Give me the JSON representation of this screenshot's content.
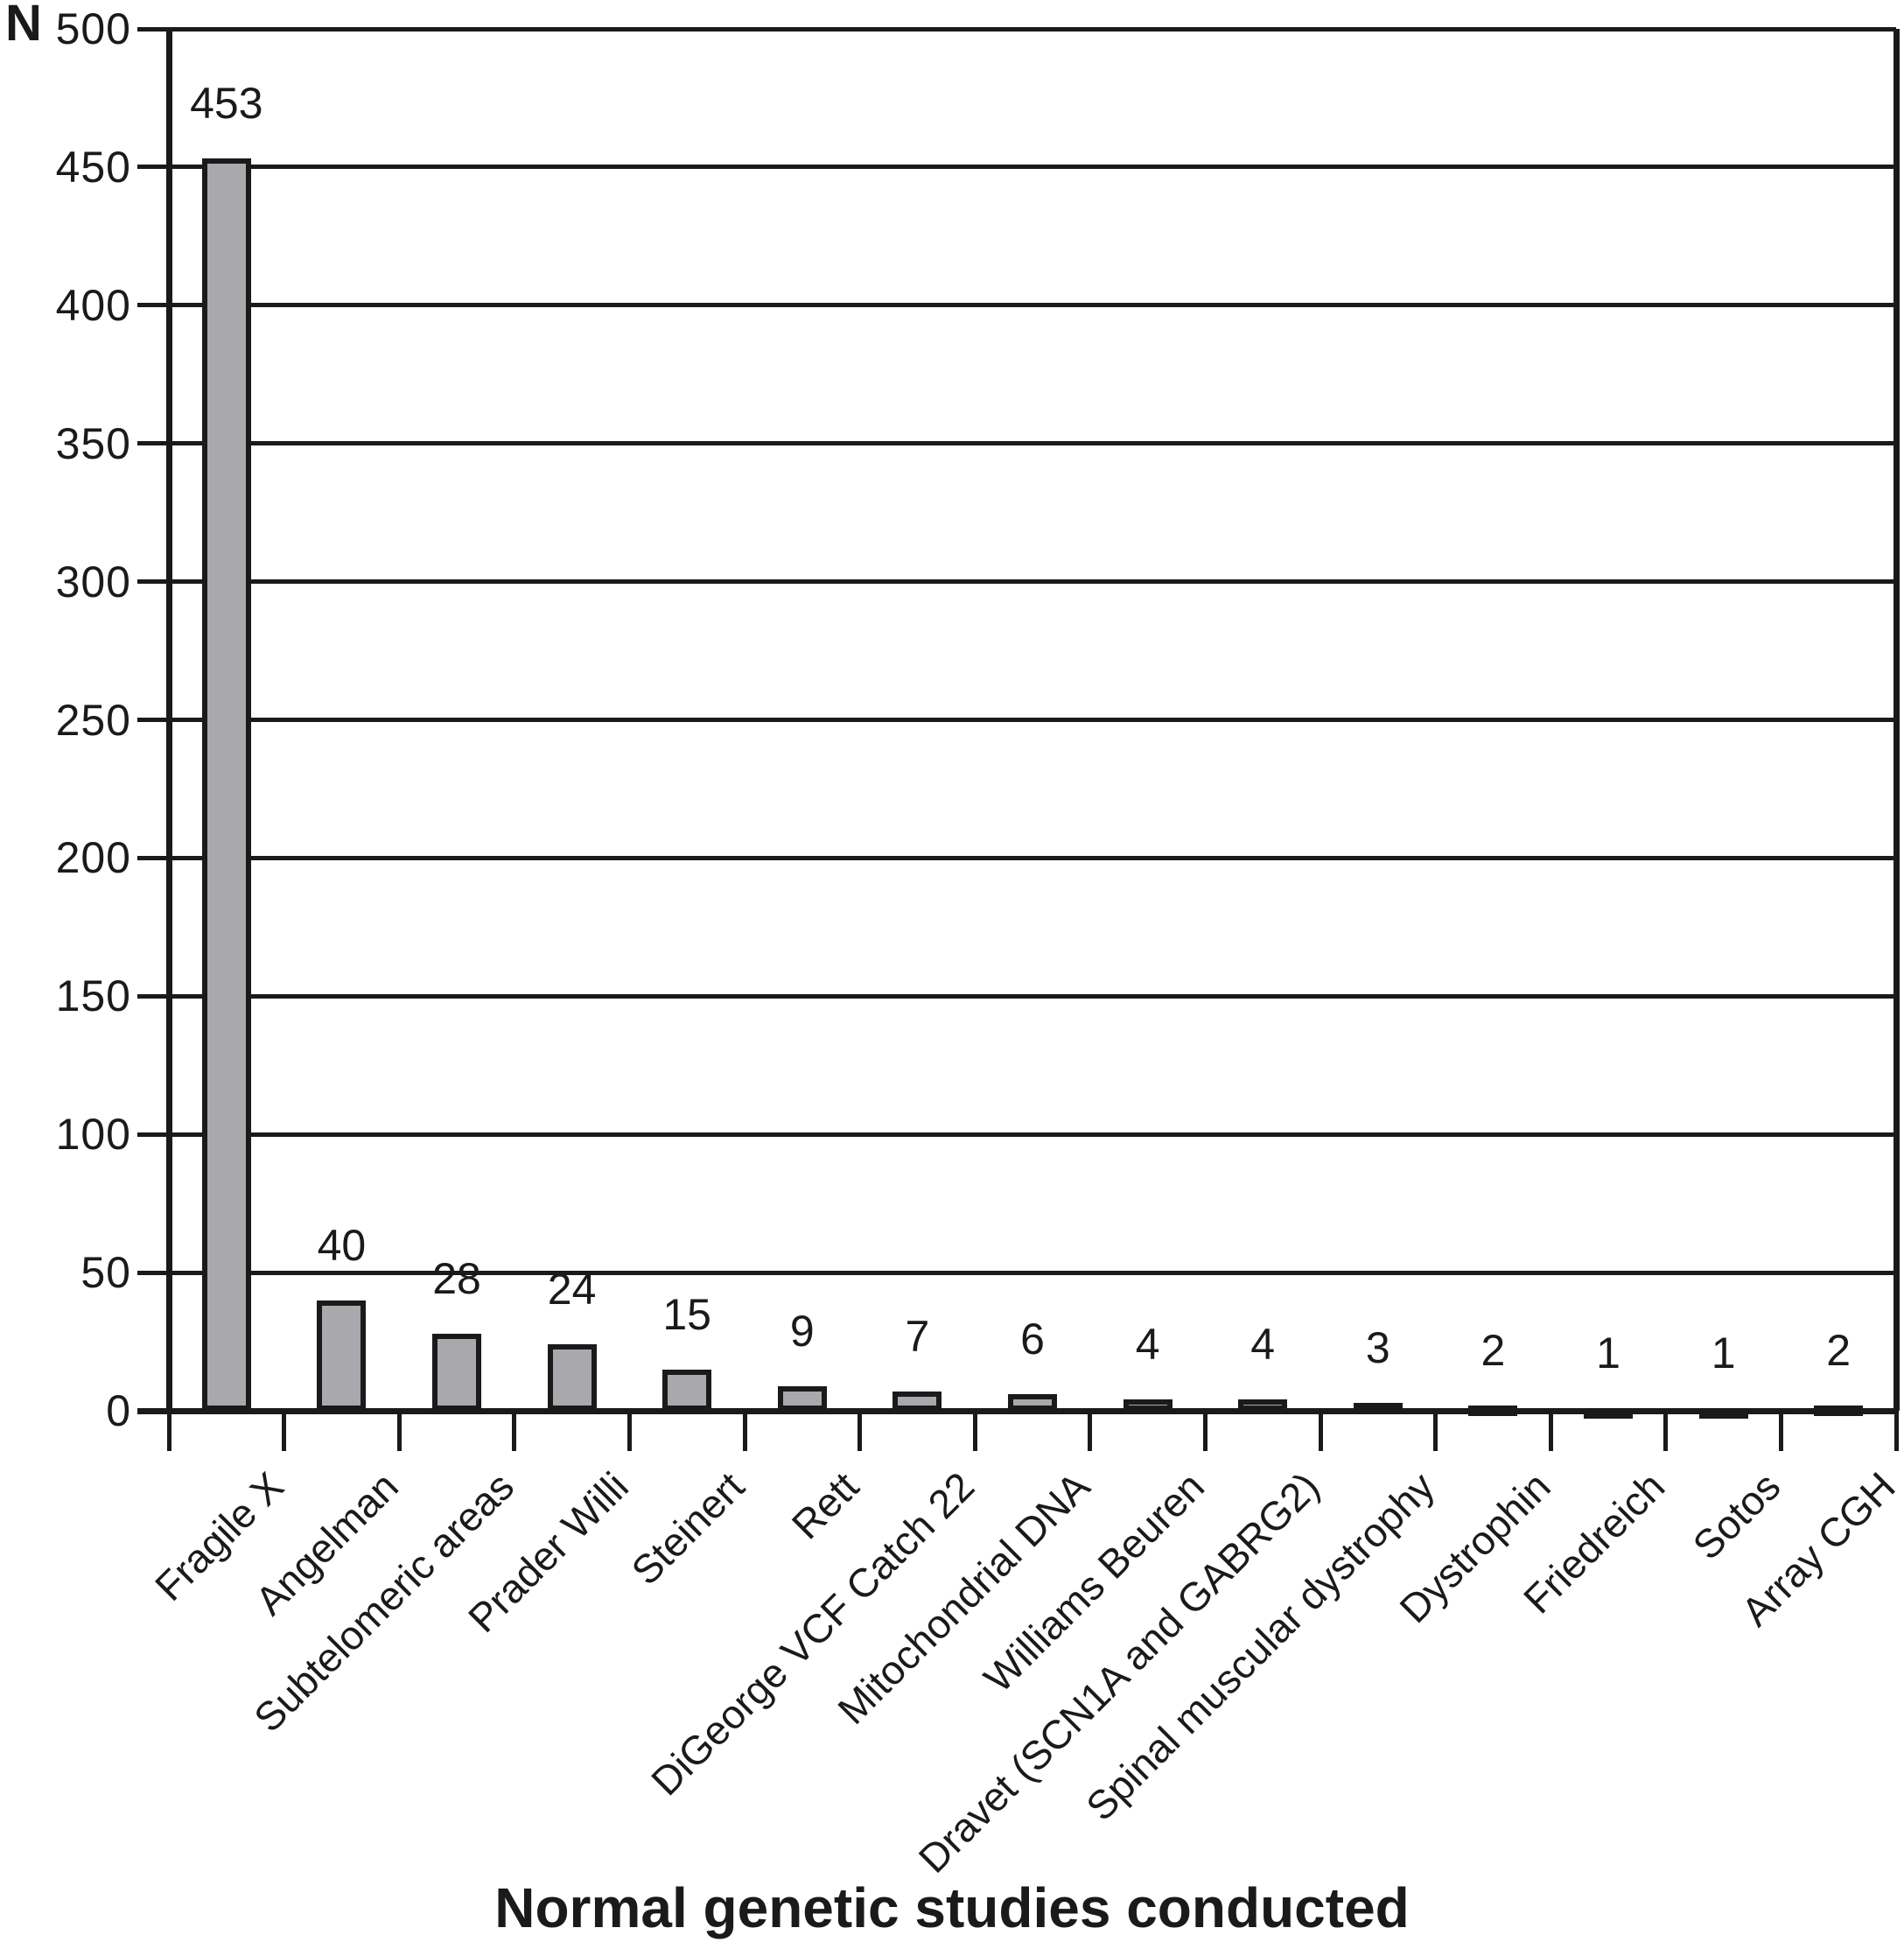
{
  "chart_data": {
    "type": "bar",
    "title": "Normal genetic studies conducted",
    "ylabel": "N",
    "xlabel": "",
    "categories": [
      "Fragile X",
      "Angelman",
      "Subtelomeric areas",
      "Prader Willi",
      "Steinert",
      "Rett",
      "DiGeorge VCF Catch 22",
      "Mitochondrial DNA",
      "Williams Beuren",
      "Dravet (SCN1A and GABRG2)",
      "Spinal muscular dystrophy",
      "Dystrophin",
      "Friedreich",
      "Sotos",
      "Array CGH"
    ],
    "values": [
      453,
      40,
      28,
      24,
      15,
      9,
      7,
      6,
      4,
      4,
      3,
      2,
      1,
      1,
      2
    ],
    "ylim": [
      0,
      500
    ],
    "ytick_step": 50,
    "grid": "horizontal",
    "legend": "none",
    "bar_fill": "#a9a9ad",
    "line_color": "#1a1a1a"
  }
}
